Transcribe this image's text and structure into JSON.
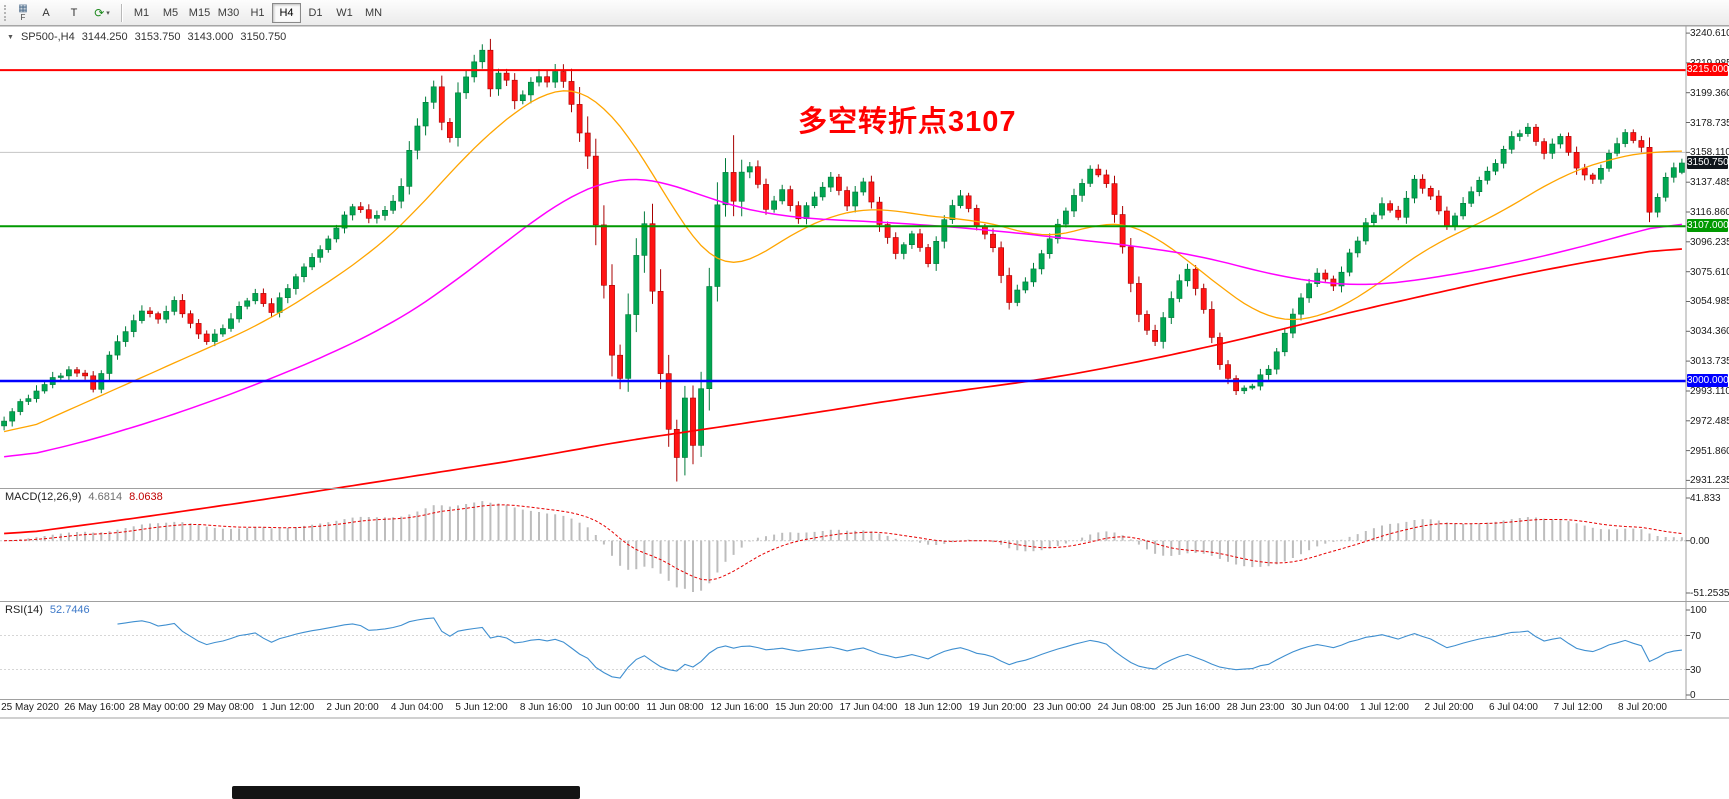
{
  "toolbar": {
    "corner": {
      "icon": "▦",
      "label": "F"
    },
    "left_buttons": [
      {
        "name": "a-tool-button",
        "label": "A"
      },
      {
        "name": "t-tool-button",
        "label": "T"
      },
      {
        "name": "period-refresh-button",
        "glyph": "⟳",
        "glyph_color": "#1e8a1e",
        "caret": "▾"
      }
    ],
    "timeframes": [
      {
        "label": "M1"
      },
      {
        "label": "M5"
      },
      {
        "label": "M15"
      },
      {
        "label": "M30"
      },
      {
        "label": "H1"
      },
      {
        "label": "H4",
        "selected": true
      },
      {
        "label": "D1"
      },
      {
        "label": "W1"
      },
      {
        "label": "MN"
      }
    ]
  },
  "quote": {
    "symbol": "SP500-,H4",
    "open": "3144.250",
    "high": "3153.750",
    "low": "3143.000",
    "close": "3150.750"
  },
  "annotation": {
    "text": "多空转折点3107",
    "color": "#ff0000"
  },
  "macd": {
    "label": "MACD(12,26,9)",
    "value_main": "4.6814",
    "value_signal": "8.0638",
    "fast": 12,
    "slow": 26,
    "signal": 9,
    "ylim": [
      -51.2535,
      41.833
    ],
    "y_ticks": [
      "41.833",
      "0.00",
      "-51.2535"
    ],
    "hist_color": "#bdbdbd",
    "signal_color": "#e60000"
  },
  "rsi": {
    "label": "RSI(14)",
    "value": "52.7446",
    "period": 14,
    "y_ticks": [
      "100",
      "70",
      "30",
      "0"
    ],
    "levels": [
      70,
      30
    ],
    "line_color": "#3f8fd0"
  },
  "chart_data": {
    "type": "candlestick",
    "symbol": "SP500-",
    "timeframe": "H4",
    "bars": 208,
    "ohlc_current": {
      "open": 3144.25,
      "high": 3153.75,
      "low": 3143.0,
      "close": 3150.75
    },
    "ylim": [
      2926.0,
      3245.5
    ],
    "y_ticks": [
      "3240.610",
      "3219.985",
      "3199.360",
      "3178.735",
      "3158.110",
      "3137.485",
      "3116.860",
      "3096.235",
      "3075.610",
      "3054.985",
      "3034.360",
      "3013.735",
      "2993.110",
      "2972.485",
      "2951.860",
      "2931.235"
    ],
    "x_labels": [
      "25 May 2020",
      "26 May 16:00",
      "28 May 00:00",
      "29 May 08:00",
      "1 Jun 12:00",
      "2 Jun 20:00",
      "4 Jun 04:00",
      "5 Jun 12:00",
      "8 Jun 16:00",
      "10 Jun 00:00",
      "11 Jun 08:00",
      "12 Jun 16:00",
      "15 Jun 20:00",
      "17 Jun 04:00",
      "18 Jun 12:00",
      "19 Jun 20:00",
      "23 Jun 00:00",
      "24 Jun 08:00",
      "25 Jun 16:00",
      "28 Jun 23:00",
      "30 Jun 04:00",
      "1 Jul 12:00",
      "2 Jul 20:00",
      "6 Jul 04:00",
      "7 Jul 12:00",
      "8 Jul 20:00"
    ],
    "gridline_price": 3158.11,
    "levels": [
      {
        "price": 3215.0,
        "label": "3215.000",
        "color": "#ff0000",
        "width": 2
      },
      {
        "price": 3107.0,
        "label": "3107.000",
        "color": "#009900",
        "width": 2
      },
      {
        "price": 3000.0,
        "label": "3000.000",
        "color": "#0000ff",
        "width": 2.4
      }
    ],
    "current_price": {
      "value": 3150.75,
      "label": "3150.750",
      "bg": "#10161c"
    },
    "up_color": "#00a651",
    "up_stroke": "#007a3a",
    "down_color": "#ff1414",
    "down_stroke": "#a80000",
    "close_anchors": [
      [
        0,
        2972
      ],
      [
        2,
        2985
      ],
      [
        4,
        2992
      ],
      [
        6,
        3001
      ],
      [
        8,
        3008
      ],
      [
        10,
        3004
      ],
      [
        11,
        2993
      ],
      [
        13,
        3018
      ],
      [
        15,
        3035
      ],
      [
        17,
        3048
      ],
      [
        19,
        3042
      ],
      [
        21,
        3055
      ],
      [
        23,
        3040
      ],
      [
        25,
        3028
      ],
      [
        27,
        3036
      ],
      [
        29,
        3052
      ],
      [
        31,
        3062
      ],
      [
        33,
        3048
      ],
      [
        35,
        3065
      ],
      [
        37,
        3080
      ],
      [
        39,
        3092
      ],
      [
        41,
        3105
      ],
      [
        43,
        3122
      ],
      [
        45,
        3112
      ],
      [
        47,
        3118
      ],
      [
        49,
        3135
      ],
      [
        50,
        3158
      ],
      [
        52,
        3192
      ],
      [
        53,
        3205
      ],
      [
        54,
        3178
      ],
      [
        55,
        3168
      ],
      [
        56,
        3198
      ],
      [
        58,
        3222
      ],
      [
        59,
        3228
      ],
      [
        60,
        3202
      ],
      [
        61,
        3212
      ],
      [
        62,
        3208
      ],
      [
        63,
        3192
      ],
      [
        64,
        3198
      ],
      [
        65,
        3205
      ],
      [
        66,
        3212
      ],
      [
        67,
        3208
      ],
      [
        68,
        3215
      ],
      [
        69,
        3205
      ],
      [
        70,
        3192
      ],
      [
        71,
        3175
      ],
      [
        72,
        3152
      ],
      [
        73,
        3108
      ],
      [
        74,
        3062
      ],
      [
        75,
        3015
      ],
      [
        76,
        3002
      ],
      [
        77,
        3042
      ],
      [
        78,
        3088
      ],
      [
        79,
        3105
      ],
      [
        80,
        3062
      ],
      [
        81,
        3008
      ],
      [
        82,
        2968
      ],
      [
        83,
        2948
      ],
      [
        84,
        2985
      ],
      [
        85,
        2955
      ],
      [
        86,
        2995
      ],
      [
        87,
        3062
      ],
      [
        88,
        3118
      ],
      [
        89,
        3145
      ],
      [
        90,
        3128
      ],
      [
        91,
        3142
      ],
      [
        92,
        3152
      ],
      [
        93,
        3135
      ],
      [
        94,
        3118
      ],
      [
        96,
        3132
      ],
      [
        98,
        3112
      ],
      [
        100,
        3128
      ],
      [
        102,
        3142
      ],
      [
        104,
        3122
      ],
      [
        106,
        3138
      ],
      [
        108,
        3108
      ],
      [
        110,
        3088
      ],
      [
        112,
        3102
      ],
      [
        114,
        3082
      ],
      [
        116,
        3112
      ],
      [
        118,
        3128
      ],
      [
        120,
        3108
      ],
      [
        122,
        3092
      ],
      [
        124,
        3055
      ],
      [
        126,
        3068
      ],
      [
        128,
        3088
      ],
      [
        130,
        3108
      ],
      [
        132,
        3128
      ],
      [
        134,
        3148
      ],
      [
        136,
        3138
      ],
      [
        138,
        3092
      ],
      [
        140,
        3045
      ],
      [
        142,
        3028
      ],
      [
        144,
        3058
      ],
      [
        146,
        3078
      ],
      [
        148,
        3048
      ],
      [
        150,
        3012
      ],
      [
        152,
        2992
      ],
      [
        154,
        2998
      ],
      [
        156,
        3008
      ],
      [
        158,
        3032
      ],
      [
        160,
        3058
      ],
      [
        162,
        3075
      ],
      [
        164,
        3065
      ],
      [
        166,
        3088
      ],
      [
        168,
        3108
      ],
      [
        170,
        3122
      ],
      [
        172,
        3112
      ],
      [
        174,
        3138
      ],
      [
        176,
        3128
      ],
      [
        178,
        3108
      ],
      [
        180,
        3122
      ],
      [
        182,
        3138
      ],
      [
        184,
        3152
      ],
      [
        186,
        3168
      ],
      [
        188,
        3175
      ],
      [
        190,
        3158
      ],
      [
        192,
        3168
      ],
      [
        194,
        3148
      ],
      [
        196,
        3138
      ],
      [
        198,
        3158
      ],
      [
        200,
        3172
      ],
      [
        202,
        3162
      ],
      [
        203,
        3118
      ],
      [
        204,
        3128
      ],
      [
        205,
        3142
      ],
      [
        206,
        3148
      ],
      [
        207,
        3150.75
      ]
    ],
    "extremes": {
      "high": [
        [
          59,
          3231
        ],
        [
          90,
          3170
        ]
      ],
      "low": [
        [
          83,
          2930.5
        ]
      ]
    },
    "ma": [
      {
        "name": "ma-fast-line",
        "color": "#ffa500",
        "width": 1.3,
        "anchors": [
          [
            0,
            2960
          ],
          [
            8,
            2980
          ],
          [
            16,
            3000
          ],
          [
            24,
            3020
          ],
          [
            32,
            3040
          ],
          [
            40,
            3068
          ],
          [
            46,
            3092
          ],
          [
            50,
            3112
          ],
          [
            54,
            3138
          ],
          [
            58,
            3162
          ],
          [
            62,
            3182
          ],
          [
            66,
            3198
          ],
          [
            69,
            3205
          ],
          [
            72,
            3202
          ],
          [
            74,
            3192
          ],
          [
            76,
            3178
          ],
          [
            78,
            3162
          ],
          [
            80,
            3145
          ],
          [
            82,
            3125
          ],
          [
            84,
            3105
          ],
          [
            86,
            3088
          ],
          [
            88,
            3078
          ],
          [
            90,
            3076
          ],
          [
            92,
            3082
          ],
          [
            94,
            3090
          ],
          [
            96,
            3098
          ],
          [
            100,
            3110
          ],
          [
            104,
            3118
          ],
          [
            108,
            3120
          ],
          [
            112,
            3116
          ],
          [
            116,
            3112
          ],
          [
            120,
            3112
          ],
          [
            124,
            3106
          ],
          [
            128,
            3098
          ],
          [
            132,
            3102
          ],
          [
            136,
            3112
          ],
          [
            140,
            3108
          ],
          [
            144,
            3092
          ],
          [
            148,
            3075
          ],
          [
            152,
            3056
          ],
          [
            156,
            3042
          ],
          [
            160,
            3040
          ],
          [
            164,
            3048
          ],
          [
            168,
            3060
          ],
          [
            172,
            3078
          ],
          [
            176,
            3094
          ],
          [
            180,
            3104
          ],
          [
            184,
            3114
          ],
          [
            188,
            3128
          ],
          [
            192,
            3142
          ],
          [
            196,
            3150
          ],
          [
            200,
            3156
          ],
          [
            204,
            3160
          ],
          [
            207,
            3158
          ]
        ]
      },
      {
        "name": "ma-mid-line",
        "color": "#ff00ff",
        "width": 1.5,
        "anchors": [
          [
            0,
            2945
          ],
          [
            10,
            2958
          ],
          [
            20,
            2975
          ],
          [
            30,
            2995
          ],
          [
            40,
            3018
          ],
          [
            48,
            3040
          ],
          [
            54,
            3062
          ],
          [
            60,
            3088
          ],
          [
            64,
            3105
          ],
          [
            68,
            3122
          ],
          [
            72,
            3134
          ],
          [
            76,
            3141
          ],
          [
            80,
            3140
          ],
          [
            84,
            3133
          ],
          [
            88,
            3124
          ],
          [
            92,
            3118
          ],
          [
            96,
            3114
          ],
          [
            100,
            3112
          ],
          [
            108,
            3110
          ],
          [
            116,
            3107
          ],
          [
            124,
            3103
          ],
          [
            132,
            3098
          ],
          [
            140,
            3093
          ],
          [
            148,
            3086
          ],
          [
            152,
            3080
          ],
          [
            156,
            3074
          ],
          [
            160,
            3070
          ],
          [
            164,
            3067
          ],
          [
            168,
            3066
          ],
          [
            172,
            3068
          ],
          [
            176,
            3071
          ],
          [
            180,
            3075
          ],
          [
            184,
            3079
          ],
          [
            188,
            3084
          ],
          [
            192,
            3089
          ],
          [
            196,
            3095
          ],
          [
            200,
            3101
          ],
          [
            204,
            3107
          ],
          [
            207,
            3111
          ]
        ]
      },
      {
        "name": "ma-slow-line",
        "color": "#ff0000",
        "width": 1.7,
        "anchors": [
          [
            0,
            2893
          ],
          [
            16,
            2905
          ],
          [
            32,
            2918
          ],
          [
            48,
            2932
          ],
          [
            64,
            2946
          ],
          [
            76,
            2958
          ],
          [
            88,
            2968
          ],
          [
            100,
            2978
          ],
          [
            110,
            2987
          ],
          [
            120,
            2995
          ],
          [
            128,
            3001
          ],
          [
            136,
            3009
          ],
          [
            144,
            3018
          ],
          [
            152,
            3028
          ],
          [
            160,
            3039
          ],
          [
            168,
            3050
          ],
          [
            176,
            3060
          ],
          [
            184,
            3070
          ],
          [
            192,
            3079
          ],
          [
            200,
            3087
          ],
          [
            207,
            3093
          ]
        ]
      }
    ]
  }
}
